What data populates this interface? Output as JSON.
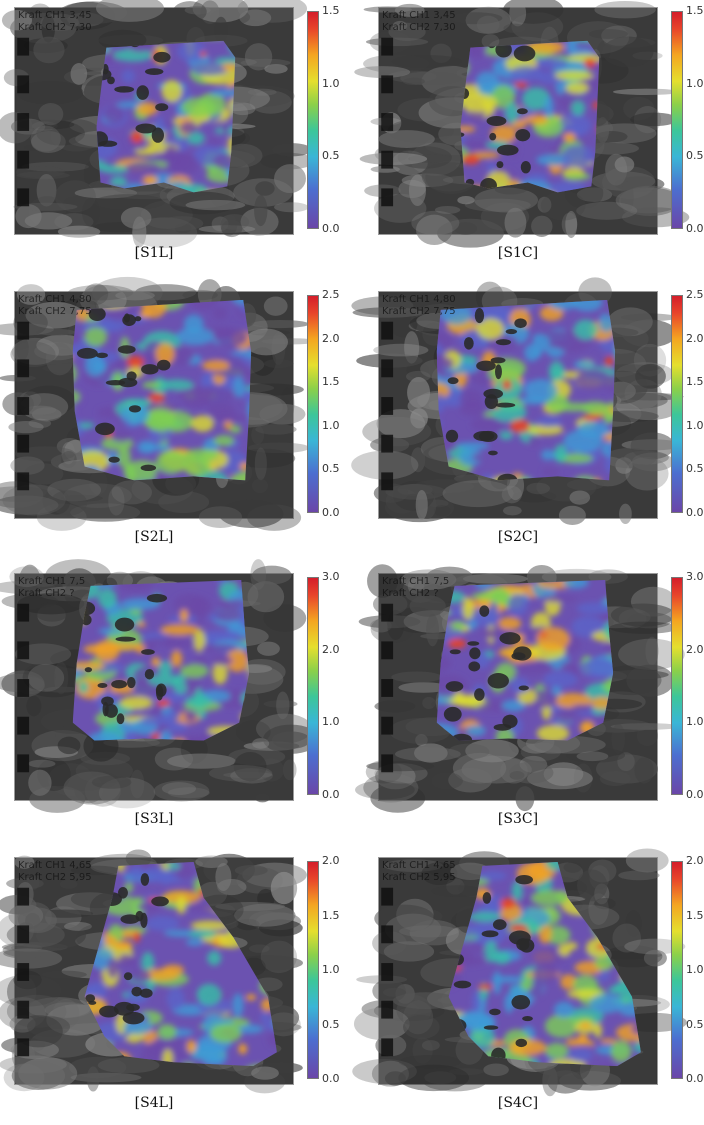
{
  "panels": [
    {
      "id": "S1L",
      "caption": "[S1L]",
      "overlay": [
        "Kraft CH1 3,45",
        "Kraft CH2 7,30"
      ],
      "colorbar": {
        "max": 1.5,
        "ticks": [
          "1.5",
          "1.0",
          "0.5",
          "0.0"
        ]
      }
    },
    {
      "id": "S1C",
      "caption": "[S1C]",
      "overlay": [
        "Kraft CH1 3,45",
        "Kraft CH2 7,30"
      ],
      "colorbar": {
        "max": 1.5,
        "ticks": [
          "1.5",
          "1.0",
          "0.5",
          "0.0"
        ]
      }
    },
    {
      "id": "S2L",
      "caption": "[S2L]",
      "overlay": [
        "Kraft CH1 4,80",
        "Kraft CH2 7,75"
      ],
      "colorbar": {
        "max": 2.5,
        "ticks": [
          "2.5",
          "2.0",
          "1.5",
          "1.0",
          "0.5",
          "0.0"
        ]
      }
    },
    {
      "id": "S2C",
      "caption": "[S2C]",
      "overlay": [
        "Kraft CH1 4,80",
        "Kraft CH2 7,75"
      ],
      "colorbar": {
        "max": 2.5,
        "ticks": [
          "2.5",
          "2.0",
          "1.5",
          "1.0",
          "0.5",
          "0.0"
        ]
      }
    },
    {
      "id": "S3L",
      "caption": "[S3L]",
      "overlay": [
        "Kraft CH1 7,5",
        "Kraft CH2 ?"
      ],
      "colorbar": {
        "max": 3.0,
        "ticks": [
          "3.0",
          "2.0",
          "1.0",
          "0.0"
        ]
      }
    },
    {
      "id": "S3C",
      "caption": "[S3C]",
      "overlay": [
        "Kraft CH1 7,5",
        "Kraft CH2 ?"
      ],
      "colorbar": {
        "max": 3.0,
        "ticks": [
          "3.0",
          "2.0",
          "1.0",
          "0.0"
        ]
      }
    },
    {
      "id": "S4L",
      "caption": "[S4L]",
      "overlay": [
        "Kraft CH1 4,65",
        "Kraft CH2 5,95"
      ],
      "colorbar": {
        "max": 2.0,
        "ticks": [
          "2.0",
          "1.5",
          "1.0",
          "0.5",
          "0.0"
        ]
      }
    },
    {
      "id": "S4C",
      "caption": "[S4C]",
      "overlay": [
        "Kraft CH1 4,65",
        "Kraft CH2 5,95"
      ],
      "colorbar": {
        "max": 2.0,
        "ticks": [
          "2.0",
          "1.5",
          "1.0",
          "0.5",
          "0.0"
        ]
      }
    }
  ]
}
